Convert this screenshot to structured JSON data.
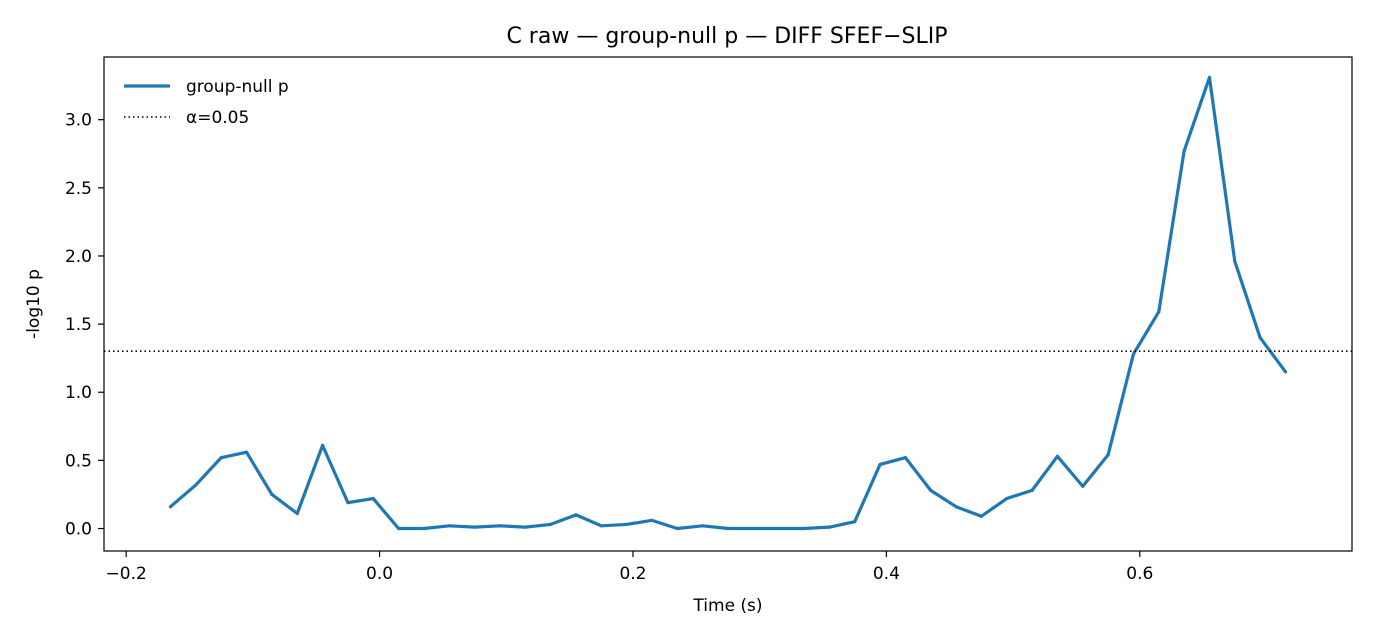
{
  "chart_data": {
    "type": "line",
    "title": "C raw — group-null p — DIFF SFEF−SLIP",
    "xlabel": "Time (s)",
    "ylabel": "-log10 p",
    "xlim": [
      -0.2175,
      0.7675
    ],
    "ylim": [
      -0.165,
      3.46
    ],
    "xticks": [
      -0.2,
      0.0,
      0.2,
      0.4,
      0.6
    ],
    "xtick_labels": [
      "−0.2",
      "0.0",
      "0.2",
      "0.4",
      "0.6"
    ],
    "yticks": [
      0.0,
      0.5,
      1.0,
      1.5,
      2.0,
      2.5,
      3.0
    ],
    "ytick_labels": [
      "0.0",
      "0.5",
      "1.0",
      "1.5",
      "2.0",
      "2.5",
      "3.0"
    ],
    "grid": false,
    "legend_position": "top-left",
    "series": [
      {
        "name": "group-null p",
        "color": "#1f77b4",
        "style": "solid",
        "x": [
          -0.165,
          -0.145,
          -0.125,
          -0.105,
          -0.085,
          -0.065,
          -0.045,
          -0.025,
          -0.005,
          0.015,
          0.035,
          0.055,
          0.075,
          0.095,
          0.115,
          0.135,
          0.155,
          0.175,
          0.195,
          0.215,
          0.235,
          0.255,
          0.275,
          0.295,
          0.315,
          0.335,
          0.355,
          0.375,
          0.395,
          0.415,
          0.435,
          0.455,
          0.475,
          0.495,
          0.515,
          0.535,
          0.555,
          0.575,
          0.595,
          0.615,
          0.635,
          0.655,
          0.675,
          0.695,
          0.715
        ],
        "values": [
          0.16,
          0.32,
          0.52,
          0.56,
          0.25,
          0.11,
          0.61,
          0.19,
          0.22,
          0.0,
          0.0,
          0.02,
          0.01,
          0.02,
          0.01,
          0.03,
          0.1,
          0.02,
          0.03,
          0.06,
          0.0,
          0.02,
          0.0,
          0.0,
          0.0,
          0.0,
          0.01,
          0.05,
          0.47,
          0.52,
          0.28,
          0.16,
          0.09,
          0.22,
          0.28,
          0.53,
          0.31,
          0.54,
          1.28,
          1.59,
          2.77,
          3.31,
          1.96,
          1.4,
          1.15
        ]
      },
      {
        "name": "α=0.05",
        "color": "#000000",
        "style": "dotted",
        "hline": 1.301
      }
    ]
  }
}
